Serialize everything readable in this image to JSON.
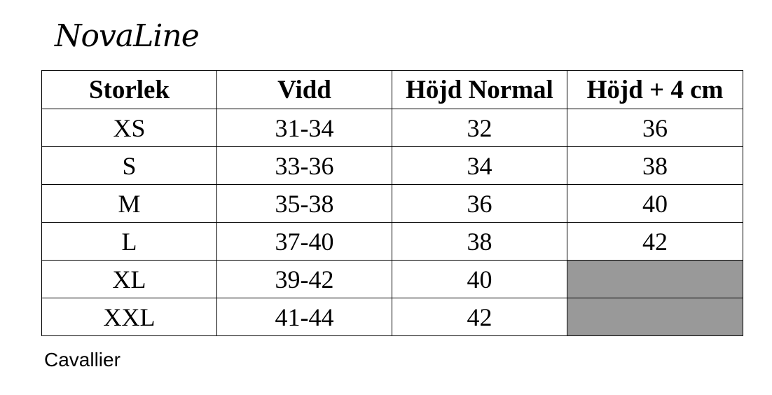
{
  "logo": {
    "text": "NovaLine"
  },
  "table": {
    "headers": [
      "Storlek",
      "Vidd",
      "Höjd Normal",
      "Höjd + 4 cm"
    ],
    "rows": [
      [
        "XS",
        "31-34",
        "32",
        "36"
      ],
      [
        "S",
        "33-36",
        "34",
        "38"
      ],
      [
        "M",
        "35-38",
        "36",
        "40"
      ],
      [
        "L",
        "37-40",
        "38",
        "42"
      ],
      [
        "XL",
        "39-42",
        "40",
        ""
      ],
      [
        "XXL",
        "41-44",
        "42",
        ""
      ]
    ],
    "empty_cell_color": "#999999"
  },
  "footer": {
    "brand": "Cavallier"
  }
}
